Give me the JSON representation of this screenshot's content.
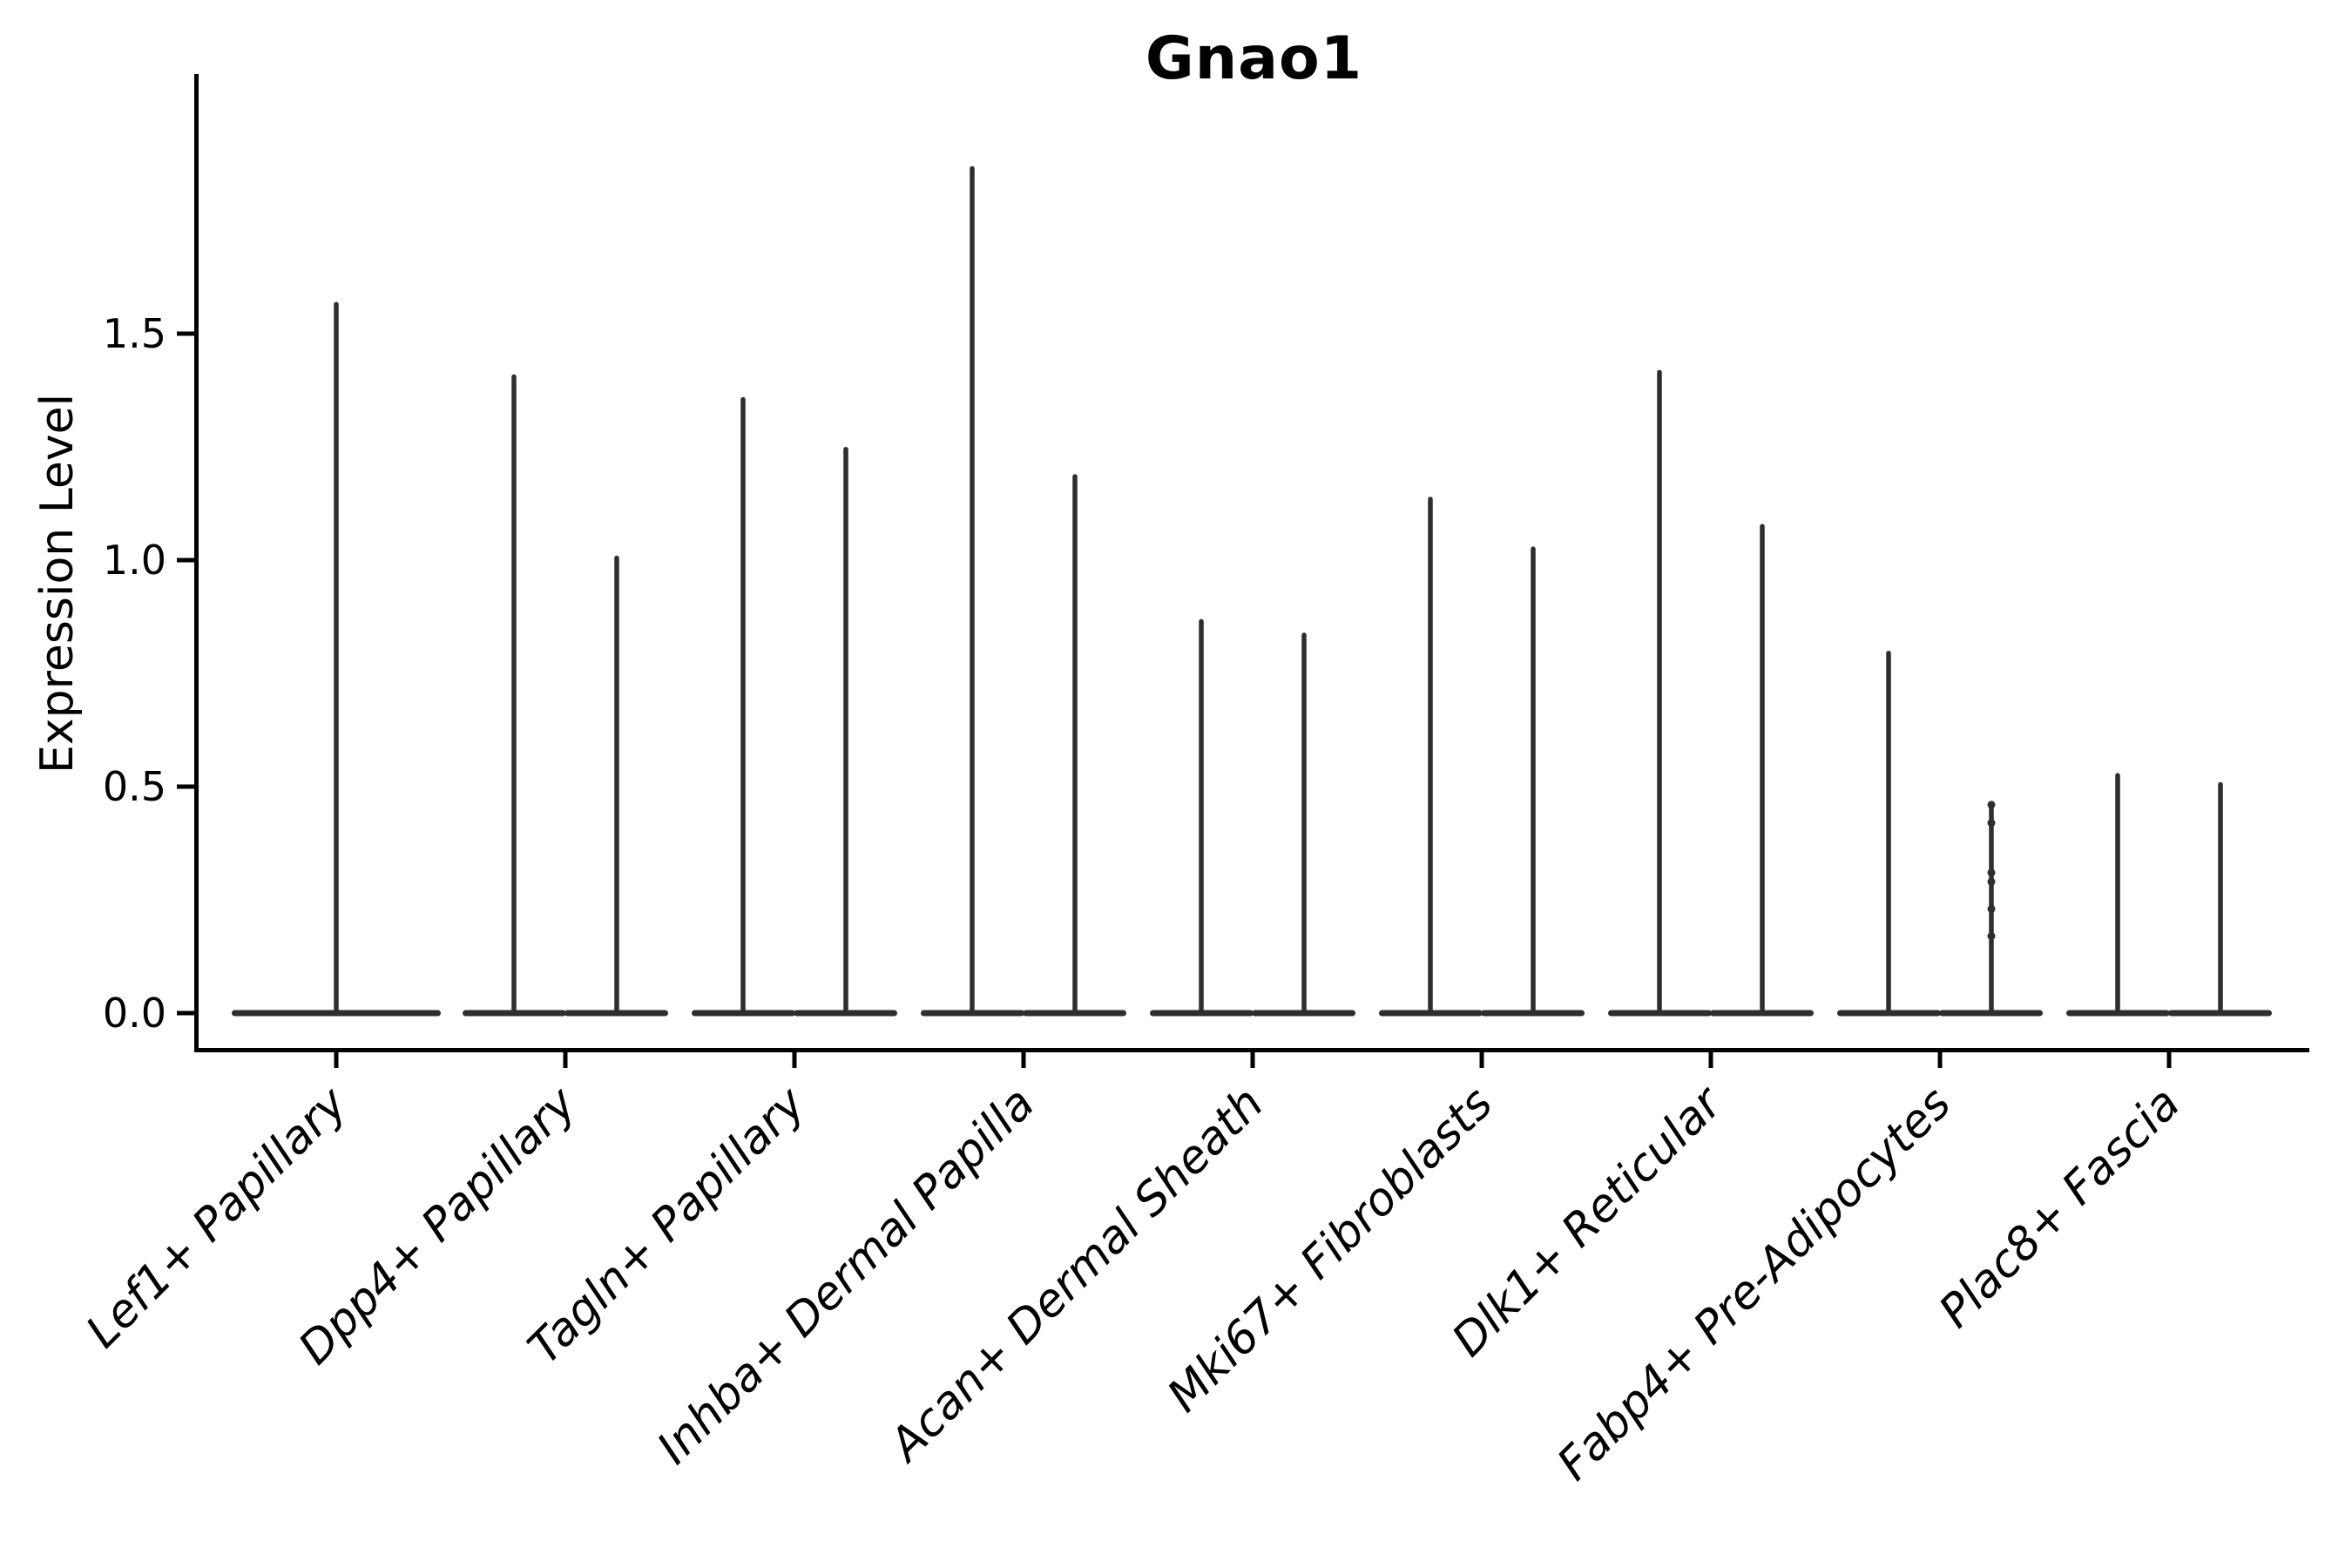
{
  "figure": {
    "title": "Gnao1",
    "ylabel": "Expression Level"
  },
  "chart_data": {
    "type": "violin",
    "title": "Gnao1",
    "xlabel": "",
    "ylabel": "Expression Level",
    "grid": false,
    "legend": false,
    "line_color": "#2e2e2e",
    "axis_color": "#000000",
    "ytick_labels": [
      "0.0",
      "0.5",
      "1.0",
      "1.5"
    ],
    "yticks": [
      0.0,
      0.5,
      1.0,
      1.5
    ],
    "ylim": [
      -0.09,
      2.07
    ],
    "categories": [
      "Lef1+ Papillary",
      "Dpp4+ Papillary",
      "Tagln+ Papillary",
      "Inhba+ Dermal Papilla",
      "Acan+ Dermal Sheath",
      "Mki67+ Fibroblasts",
      "Dlk1+ Reticular",
      "Fabp4+ Pre-Adipocytes",
      "Plac8+ Fascia"
    ],
    "violins": [
      {
        "category": "Lef1+ Papillary",
        "spike_max": [
          1.57
        ]
      },
      {
        "category": "Dpp4+ Papillary",
        "spike_max": [
          1.41,
          1.01
        ]
      },
      {
        "category": "Tagln+ Papillary",
        "spike_max": [
          1.36,
          1.25
        ]
      },
      {
        "category": "Inhba+ Dermal Papilla",
        "spike_max": [
          1.87,
          1.19
        ]
      },
      {
        "category": "Acan+ Dermal Sheath",
        "spike_max": [
          0.87,
          0.84
        ]
      },
      {
        "category": "Mki67+ Fibroblasts",
        "spike_max": [
          1.14,
          1.03
        ]
      },
      {
        "category": "Dlk1+ Reticular",
        "spike_max": [
          1.42,
          1.08
        ]
      },
      {
        "category": "Fabp4+ Pre-Adipocytes",
        "spike_max": [
          0.8,
          0.46
        ],
        "points": {
          "group": 1,
          "values": [
            0.46,
            0.42,
            0.31,
            0.29,
            0.23,
            0.17
          ]
        }
      },
      {
        "category": "Plac8+ Fascia",
        "spike_max": [
          0.53,
          0.51
        ]
      }
    ]
  }
}
